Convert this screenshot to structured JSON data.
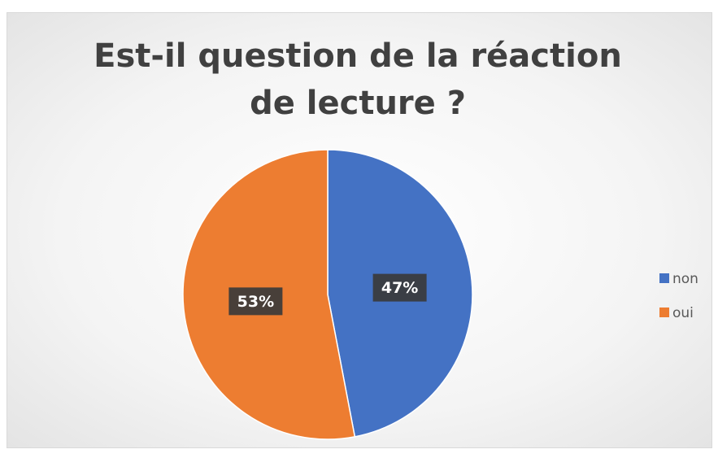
{
  "chart_data": {
    "type": "pie",
    "title": "Est-il question de la réaction de lecture ?",
    "categories": [
      "non",
      "oui"
    ],
    "values": [
      47,
      53
    ],
    "value_labels": [
      "47%",
      "53%"
    ],
    "colors": [
      "#4472c4",
      "#ed7d31"
    ],
    "legend": "right"
  }
}
